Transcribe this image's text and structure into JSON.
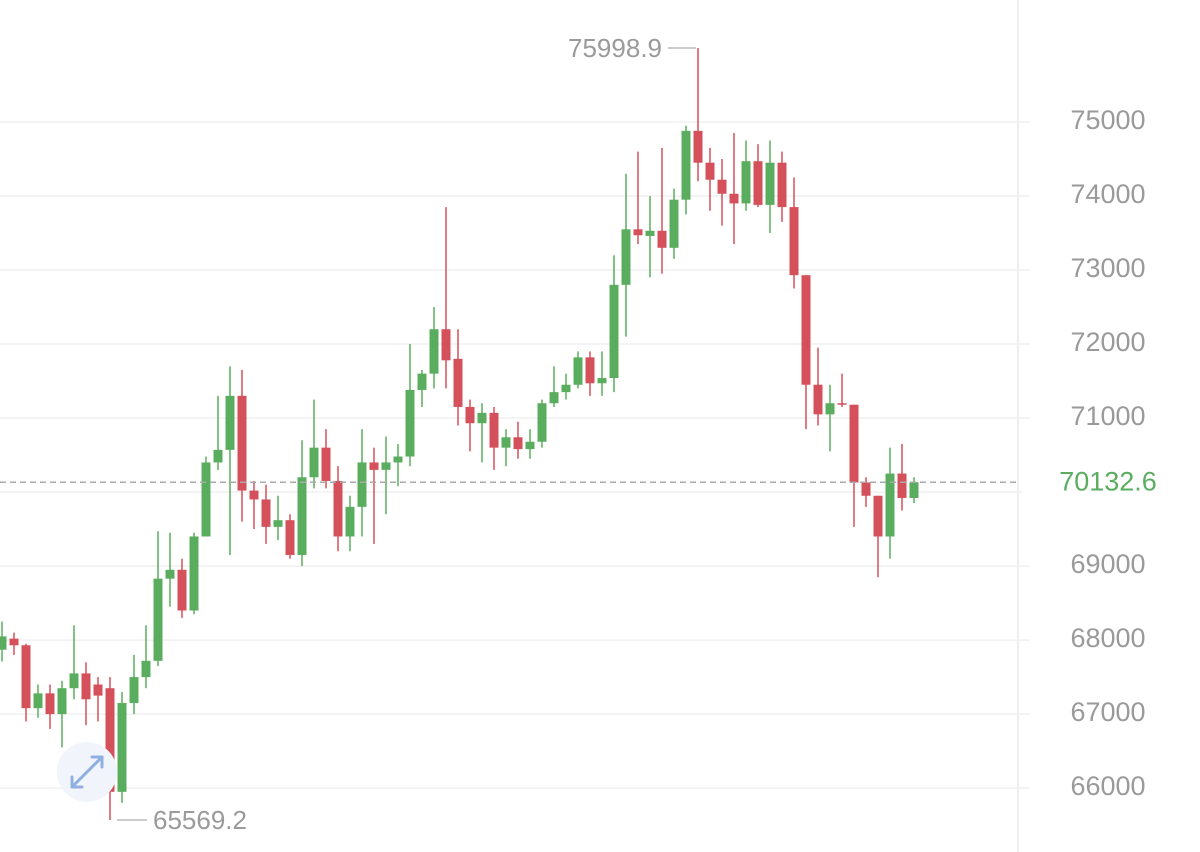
{
  "chart_data": {
    "type": "candlestick",
    "up_color": "#5aad5e",
    "down_color": "#d4505a",
    "grid": true,
    "ylim": [
      65137,
      76648
    ],
    "yticks": [
      66000,
      67000,
      68000,
      69000,
      70000,
      71000,
      72000,
      73000,
      74000,
      75000
    ],
    "open": [
      67870,
      68020,
      67930,
      67080,
      67280,
      67000,
      67350,
      67550,
      67400,
      67350,
      65950,
      67150,
      67500,
      67720,
      68830,
      68950,
      68400,
      69400,
      70400,
      70570,
      71300,
      70020,
      69900,
      69530,
      69620,
      69150,
      70200,
      70600,
      70150,
      69400,
      69800,
      70400,
      70300,
      70400,
      70480,
      71380,
      71600,
      72200,
      71800,
      71150,
      70930,
      71070,
      70600,
      70740,
      70580,
      70680,
      71200,
      71350,
      71450,
      71820,
      71470,
      71540,
      72800,
      73550,
      73460,
      73530,
      73300,
      73950,
      74880,
      74450,
      74220,
      74030,
      73900,
      74470,
      73880,
      74450,
      73850,
      72930,
      71450,
      71050,
      71200,
      71180,
      70130,
      69950,
      69400,
      70250,
      69920
    ],
    "high": [
      68250,
      68100,
      67950,
      67400,
      67400,
      67450,
      68200,
      67700,
      67500,
      67500,
      67300,
      67800,
      68200,
      69470,
      69450,
      69100,
      69450,
      70480,
      71300,
      71700,
      71650,
      70150,
      70100,
      69950,
      69700,
      70700,
      71250,
      70850,
      70350,
      69950,
      70850,
      70600,
      70750,
      70650,
      72000,
      71650,
      72500,
      73850,
      72200,
      71250,
      71200,
      71150,
      70850,
      70950,
      70850,
      71250,
      71700,
      71600,
      71900,
      71900,
      71900,
      73200,
      74300,
      74600,
      74000,
      74650,
      74100,
      74950,
      75998.9,
      74650,
      74500,
      74850,
      74750,
      74700,
      74750,
      74600,
      74250,
      72930,
      71950,
      71450,
      71600,
      71180,
      70200,
      69950,
      70600,
      70650,
      70200
    ],
    "low": [
      67710,
      67800,
      66900,
      66950,
      66800,
      66550,
      67200,
      66850,
      66900,
      65569.2,
      65800,
      67000,
      67350,
      67650,
      68450,
      68300,
      68350,
      69400,
      70300,
      69150,
      69600,
      69500,
      69300,
      69350,
      69100,
      69000,
      70050,
      70050,
      69200,
      69200,
      69400,
      69300,
      69700,
      70080,
      70350,
      71150,
      71400,
      71400,
      70900,
      70550,
      70400,
      70300,
      70350,
      70450,
      70450,
      70600,
      71150,
      71250,
      71400,
      71300,
      71300,
      71350,
      72100,
      73350,
      72900,
      72950,
      73150,
      73750,
      74200,
      73800,
      73600,
      73350,
      73800,
      73850,
      73500,
      73650,
      72750,
      70850,
      70900,
      70550,
      71150,
      69530,
      69800,
      68850,
      69100,
      69750,
      69850
    ],
    "close": [
      68050,
      67930,
      67080,
      67280,
      67000,
      67350,
      67550,
      67200,
      67250,
      65950,
      67150,
      67500,
      67720,
      68830,
      68950,
      68400,
      69400,
      70400,
      70570,
      71300,
      70020,
      69900,
      69530,
      69620,
      69150,
      70200,
      70600,
      70150,
      69400,
      69800,
      70400,
      70300,
      70400,
      70480,
      71380,
      71600,
      72200,
      71780,
      71150,
      70930,
      71070,
      70600,
      70740,
      70580,
      70680,
      71200,
      71350,
      71450,
      71820,
      71470,
      71540,
      72800,
      73550,
      73470,
      73530,
      73300,
      73950,
      74880,
      74450,
      74220,
      74030,
      73900,
      74470,
      73880,
      74450,
      73850,
      72930,
      71450,
      71050,
      71200,
      71180,
      70130,
      69950,
      69400,
      70250,
      69920,
      70132.6
    ]
  }
}
